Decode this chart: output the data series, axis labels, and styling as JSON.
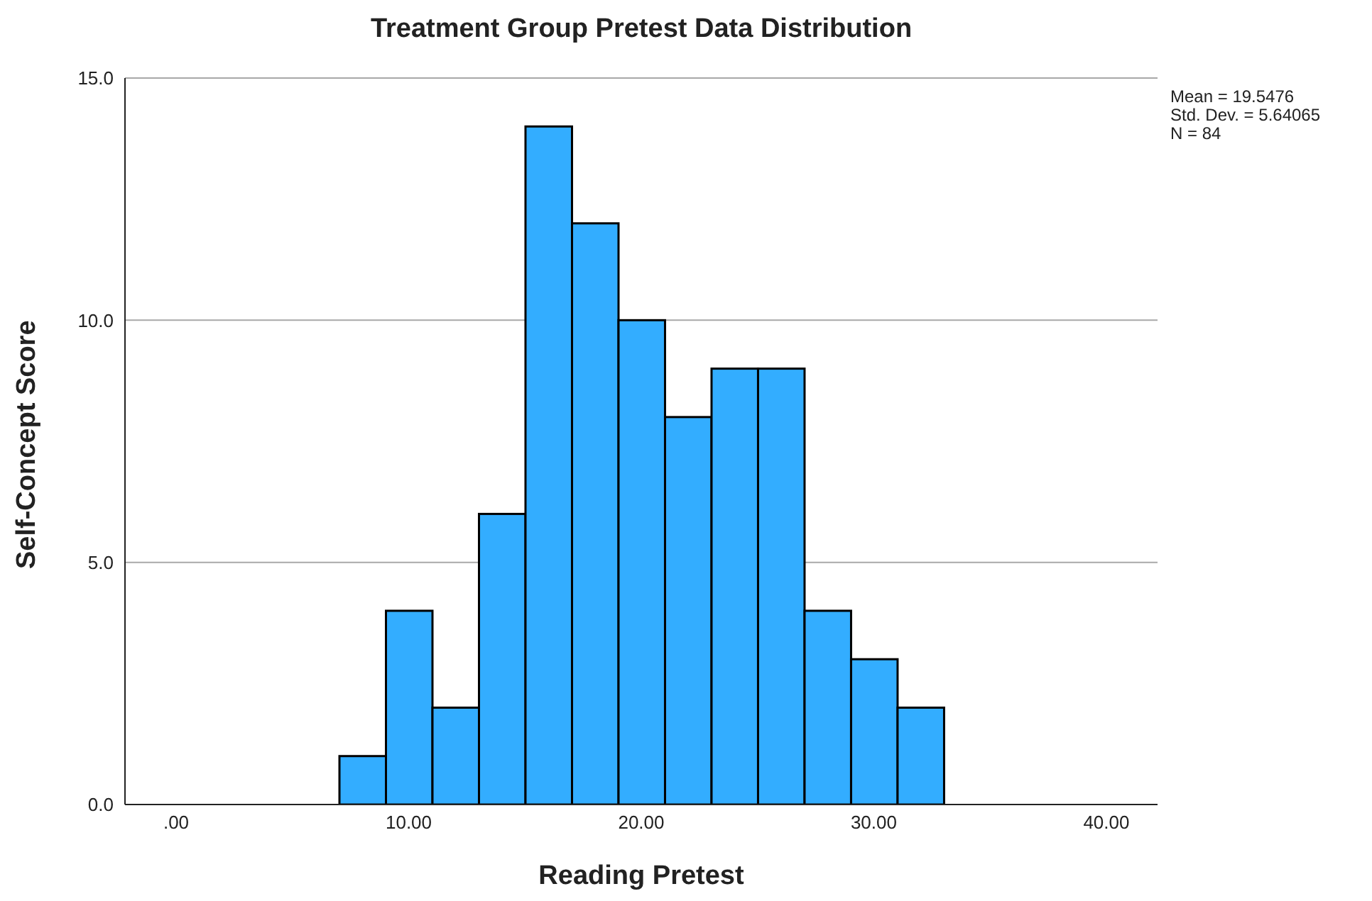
{
  "chart_data": {
    "type": "histogram",
    "title": "Treatment Group Pretest Data Distribution",
    "xlabel": "Reading Pretest",
    "ylabel": "Self-Concept Score",
    "bins": [
      7,
      9,
      11,
      13,
      15,
      17,
      19,
      21,
      23,
      25,
      27,
      29,
      31,
      33
    ],
    "values": [
      1,
      4,
      2,
      6,
      14,
      12,
      10,
      8,
      9,
      9,
      4,
      3,
      2
    ],
    "color": "#33adff",
    "xlim": [
      -2.2,
      42.2
    ],
    "xticks": [
      {
        "value": 0,
        "label": ".00"
      },
      {
        "value": 10,
        "label": "10.00"
      },
      {
        "value": 20,
        "label": "20.00"
      },
      {
        "value": 30,
        "label": "30.00"
      },
      {
        "value": 40,
        "label": "40.00"
      }
    ],
    "ylim": [
      0,
      15
    ],
    "yticks": [
      {
        "value": 0,
        "label": "0.0"
      },
      {
        "value": 5,
        "label": "5.0"
      },
      {
        "value": 10,
        "label": "10.0"
      },
      {
        "value": 15,
        "label": "15.0"
      }
    ],
    "grid": "y",
    "annotations": [
      "Mean = 19.5476",
      "Std. Dev. = 5.64065",
      "N = 84"
    ]
  }
}
